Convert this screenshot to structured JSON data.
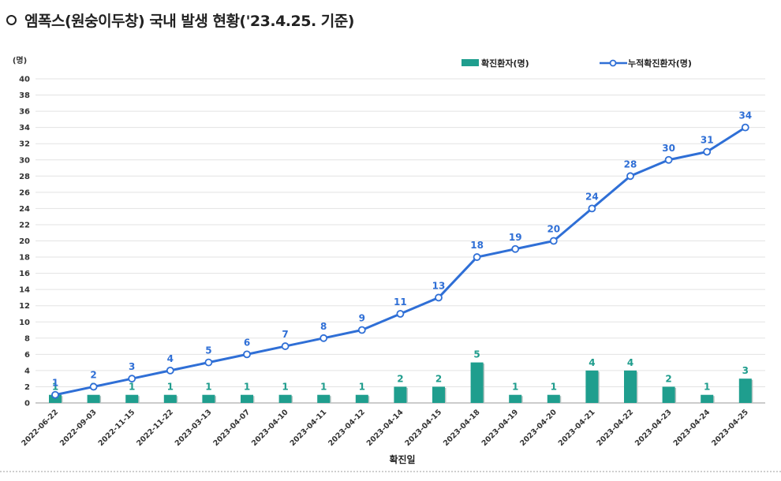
{
  "header": {
    "title": "엠폭스(원숭이두창) 국내 발생 현황('23.4.25. 기준)"
  },
  "chart_data": {
    "type": "bar",
    "title": "엠폭스(원숭이두창) 국내 발생 현황('23.4.25. 기준)",
    "xlabel": "확진일",
    "ylabel": "(명)",
    "ylim": [
      0,
      40
    ],
    "ytick_step": 2,
    "grid": true,
    "legend_position": "top-right",
    "categories": [
      "2022-06-22",
      "2022-09-03",
      "2022-11-15",
      "2022-11-22",
      "2023-03-13",
      "2023-04-07",
      "2023-04-10",
      "2023-04-11",
      "2023-04-12",
      "2023-04-14",
      "2023-04-15",
      "2023-04-18",
      "2023-04-19",
      "2023-04-20",
      "2023-04-21",
      "2023-04-22",
      "2023-04-23",
      "2023-04-24",
      "2023-04-25"
    ],
    "series": [
      {
        "name": "확진환자(명)",
        "type": "bar",
        "color": "#1f9e8e",
        "values": [
          1,
          1,
          1,
          1,
          1,
          1,
          1,
          1,
          1,
          2,
          2,
          5,
          1,
          1,
          4,
          4,
          2,
          1,
          3
        ]
      },
      {
        "name": "누적확진환자(명)",
        "type": "line",
        "color": "#2f6fd6",
        "values": [
          1,
          2,
          3,
          4,
          5,
          6,
          7,
          8,
          9,
          11,
          13,
          18,
          19,
          20,
          24,
          28,
          30,
          31,
          34
        ]
      }
    ]
  }
}
